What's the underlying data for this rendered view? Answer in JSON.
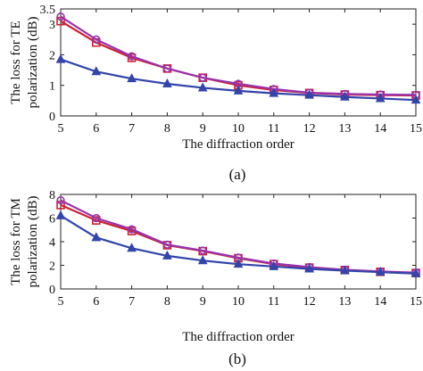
{
  "chart_data": [
    {
      "type": "line",
      "panel_label": "(a)",
      "xlabel": "The diffraction order",
      "ylabel_lines": [
        "The loss for TE",
        "polarization (dB)"
      ],
      "x": [
        5,
        6,
        7,
        8,
        9,
        10,
        11,
        12,
        13,
        14,
        15
      ],
      "xlim": [
        5,
        15
      ],
      "ylim": [
        0,
        3.5
      ],
      "xticks": [
        "5",
        "6",
        "7",
        "8",
        "9",
        "10",
        "11",
        "12",
        "13",
        "14",
        "15"
      ],
      "yticks": [
        0,
        1,
        2,
        3,
        3.5
      ],
      "ytick_labels": [
        "0",
        "1",
        "2",
        "3",
        "3.5"
      ],
      "grid": false,
      "series": [
        {
          "color": "#cc2233",
          "marker": "square",
          "values": [
            3.1,
            2.4,
            1.9,
            1.55,
            1.25,
            1.0,
            0.85,
            0.75,
            0.7,
            0.68,
            0.67
          ]
        },
        {
          "color": "#9933aa",
          "marker": "circle",
          "values": [
            3.25,
            2.5,
            1.95,
            1.55,
            1.25,
            1.05,
            0.88,
            0.76,
            0.72,
            0.7,
            0.69
          ]
        },
        {
          "color": "#3344aa",
          "marker": "triangle",
          "values": [
            1.85,
            1.45,
            1.22,
            1.05,
            0.92,
            0.82,
            0.74,
            0.68,
            0.62,
            0.57,
            0.52
          ]
        }
      ]
    },
    {
      "type": "line",
      "panel_label": "(b)",
      "xlabel": "The diffraction order",
      "ylabel_lines": [
        "The loss for TM",
        "polarization (dB)"
      ],
      "x": [
        5,
        6,
        7,
        8,
        9,
        10,
        11,
        12,
        13,
        14,
        15
      ],
      "xlim": [
        5,
        15
      ],
      "ylim": [
        0,
        8
      ],
      "xticks": [
        "5",
        "6",
        "7",
        "8",
        "9",
        "10",
        "11",
        "12",
        "13",
        "14",
        "15"
      ],
      "yticks": [
        0,
        2,
        4,
        6,
        8
      ],
      "ytick_labels": [
        "0",
        "2",
        "4",
        "6",
        "8"
      ],
      "grid": false,
      "series": [
        {
          "color": "#cc2233",
          "marker": "square",
          "values": [
            7.1,
            5.8,
            4.9,
            3.7,
            3.2,
            2.6,
            2.1,
            1.8,
            1.6,
            1.45,
            1.35
          ]
        },
        {
          "color": "#9933aa",
          "marker": "circle",
          "values": [
            7.5,
            6.0,
            5.05,
            3.75,
            3.25,
            2.65,
            2.15,
            1.85,
            1.62,
            1.48,
            1.38
          ]
        },
        {
          "color": "#3344aa",
          "marker": "triangle",
          "values": [
            6.2,
            4.35,
            3.45,
            2.8,
            2.4,
            2.1,
            1.9,
            1.7,
            1.55,
            1.42,
            1.3
          ]
        }
      ]
    }
  ]
}
